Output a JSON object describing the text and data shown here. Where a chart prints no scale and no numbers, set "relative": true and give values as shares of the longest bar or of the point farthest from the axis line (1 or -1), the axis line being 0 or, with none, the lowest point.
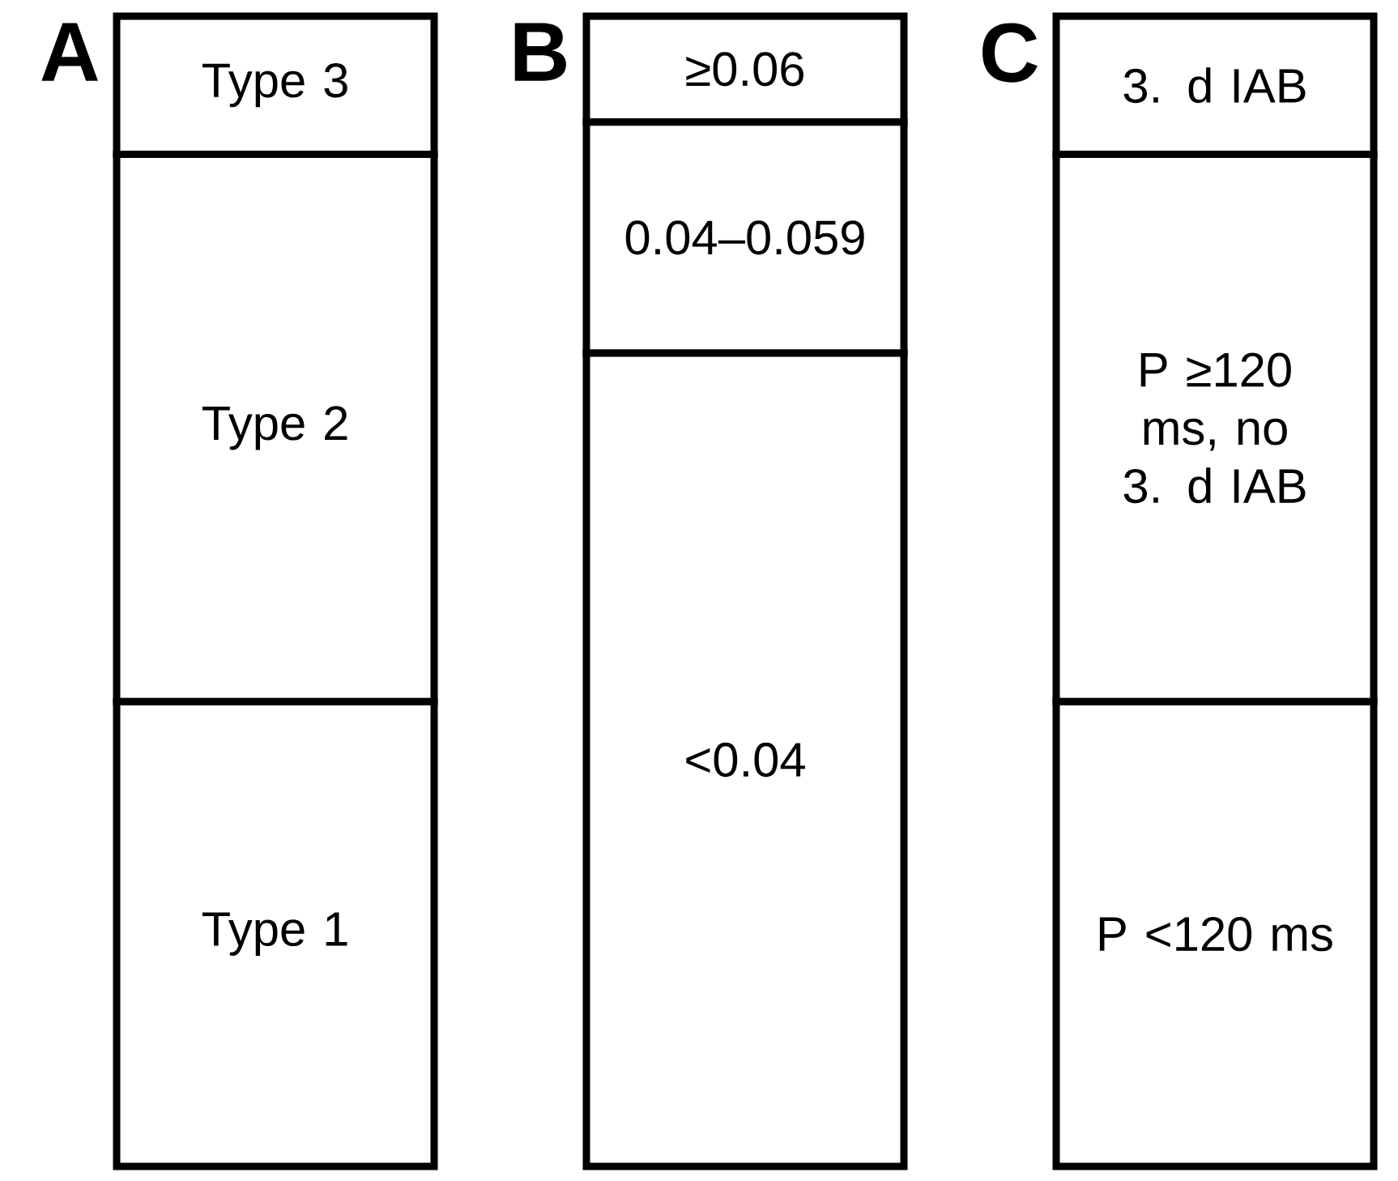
{
  "chart_data": [
    {
      "type": "bar",
      "title": "A",
      "stacked": true,
      "relative": true,
      "categories": [
        null
      ],
      "series": [
        {
          "name": "Type 1",
          "color": "#ffffff",
          "values": [
            0.404
          ]
        },
        {
          "name": "Type 2",
          "color": "#ffffff",
          "values": [
            0.476
          ]
        },
        {
          "name": "Type 3",
          "color": "#ffffff",
          "values": [
            0.12
          ]
        }
      ]
    },
    {
      "type": "bar",
      "title": "B",
      "stacked": true,
      "relative": true,
      "categories": [
        null
      ],
      "series": [
        {
          "name": "<0.04",
          "color": "#ffffff",
          "values": [
            0.707
          ]
        },
        {
          "name": "0.04–0.059",
          "color": "#ffffff",
          "values": [
            0.201
          ]
        },
        {
          "name": "≥0.06",
          "color": "#ffffff",
          "values": [
            0.092
          ]
        }
      ]
    },
    {
      "type": "bar",
      "title": "C",
      "stacked": true,
      "relative": true,
      "categories": [
        null
      ],
      "series": [
        {
          "name": "P <120 ms",
          "color": "#ffffff",
          "values": [
            0.404
          ]
        },
        {
          "name": "P ≥120 ms, no 3. d IAB",
          "color": "#ffffff",
          "values": [
            0.476
          ]
        },
        {
          "name": "3. d IAB",
          "color": "#ffffff",
          "values": [
            0.12
          ]
        }
      ]
    }
  ]
}
